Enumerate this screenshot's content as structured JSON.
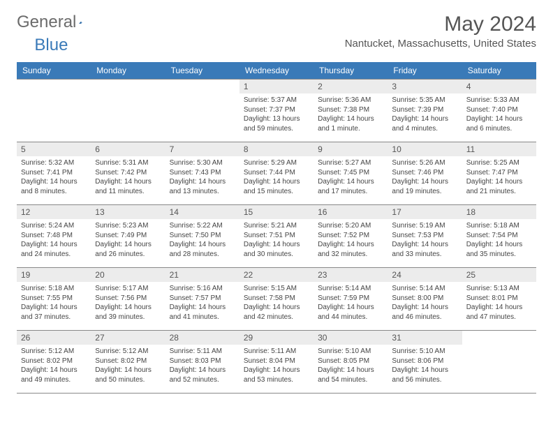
{
  "logo": {
    "text1": "General",
    "text2": "Blue"
  },
  "title": "May 2024",
  "location": "Nantucket, Massachusetts, United States",
  "colors": {
    "header_bg": "#3a7ab8",
    "daynum_bg": "#ececec",
    "border": "#888888",
    "text": "#444444",
    "title": "#555555"
  },
  "dayHeaders": [
    "Sunday",
    "Monday",
    "Tuesday",
    "Wednesday",
    "Thursday",
    "Friday",
    "Saturday"
  ],
  "weeks": [
    [
      null,
      null,
      null,
      {
        "n": "1",
        "sr": "5:37 AM",
        "ss": "7:37 PM",
        "dl": "13 hours and 59 minutes."
      },
      {
        "n": "2",
        "sr": "5:36 AM",
        "ss": "7:38 PM",
        "dl": "14 hours and 1 minute."
      },
      {
        "n": "3",
        "sr": "5:35 AM",
        "ss": "7:39 PM",
        "dl": "14 hours and 4 minutes."
      },
      {
        "n": "4",
        "sr": "5:33 AM",
        "ss": "7:40 PM",
        "dl": "14 hours and 6 minutes."
      }
    ],
    [
      {
        "n": "5",
        "sr": "5:32 AM",
        "ss": "7:41 PM",
        "dl": "14 hours and 8 minutes."
      },
      {
        "n": "6",
        "sr": "5:31 AM",
        "ss": "7:42 PM",
        "dl": "14 hours and 11 minutes."
      },
      {
        "n": "7",
        "sr": "5:30 AM",
        "ss": "7:43 PM",
        "dl": "14 hours and 13 minutes."
      },
      {
        "n": "8",
        "sr": "5:29 AM",
        "ss": "7:44 PM",
        "dl": "14 hours and 15 minutes."
      },
      {
        "n": "9",
        "sr": "5:27 AM",
        "ss": "7:45 PM",
        "dl": "14 hours and 17 minutes."
      },
      {
        "n": "10",
        "sr": "5:26 AM",
        "ss": "7:46 PM",
        "dl": "14 hours and 19 minutes."
      },
      {
        "n": "11",
        "sr": "5:25 AM",
        "ss": "7:47 PM",
        "dl": "14 hours and 21 minutes."
      }
    ],
    [
      {
        "n": "12",
        "sr": "5:24 AM",
        "ss": "7:48 PM",
        "dl": "14 hours and 24 minutes."
      },
      {
        "n": "13",
        "sr": "5:23 AM",
        "ss": "7:49 PM",
        "dl": "14 hours and 26 minutes."
      },
      {
        "n": "14",
        "sr": "5:22 AM",
        "ss": "7:50 PM",
        "dl": "14 hours and 28 minutes."
      },
      {
        "n": "15",
        "sr": "5:21 AM",
        "ss": "7:51 PM",
        "dl": "14 hours and 30 minutes."
      },
      {
        "n": "16",
        "sr": "5:20 AM",
        "ss": "7:52 PM",
        "dl": "14 hours and 32 minutes."
      },
      {
        "n": "17",
        "sr": "5:19 AM",
        "ss": "7:53 PM",
        "dl": "14 hours and 33 minutes."
      },
      {
        "n": "18",
        "sr": "5:18 AM",
        "ss": "7:54 PM",
        "dl": "14 hours and 35 minutes."
      }
    ],
    [
      {
        "n": "19",
        "sr": "5:18 AM",
        "ss": "7:55 PM",
        "dl": "14 hours and 37 minutes."
      },
      {
        "n": "20",
        "sr": "5:17 AM",
        "ss": "7:56 PM",
        "dl": "14 hours and 39 minutes."
      },
      {
        "n": "21",
        "sr": "5:16 AM",
        "ss": "7:57 PM",
        "dl": "14 hours and 41 minutes."
      },
      {
        "n": "22",
        "sr": "5:15 AM",
        "ss": "7:58 PM",
        "dl": "14 hours and 42 minutes."
      },
      {
        "n": "23",
        "sr": "5:14 AM",
        "ss": "7:59 PM",
        "dl": "14 hours and 44 minutes."
      },
      {
        "n": "24",
        "sr": "5:14 AM",
        "ss": "8:00 PM",
        "dl": "14 hours and 46 minutes."
      },
      {
        "n": "25",
        "sr": "5:13 AM",
        "ss": "8:01 PM",
        "dl": "14 hours and 47 minutes."
      }
    ],
    [
      {
        "n": "26",
        "sr": "5:12 AM",
        "ss": "8:02 PM",
        "dl": "14 hours and 49 minutes."
      },
      {
        "n": "27",
        "sr": "5:12 AM",
        "ss": "8:02 PM",
        "dl": "14 hours and 50 minutes."
      },
      {
        "n": "28",
        "sr": "5:11 AM",
        "ss": "8:03 PM",
        "dl": "14 hours and 52 minutes."
      },
      {
        "n": "29",
        "sr": "5:11 AM",
        "ss": "8:04 PM",
        "dl": "14 hours and 53 minutes."
      },
      {
        "n": "30",
        "sr": "5:10 AM",
        "ss": "8:05 PM",
        "dl": "14 hours and 54 minutes."
      },
      {
        "n": "31",
        "sr": "5:10 AM",
        "ss": "8:06 PM",
        "dl": "14 hours and 56 minutes."
      },
      null
    ]
  ],
  "labels": {
    "sunrise": "Sunrise: ",
    "sunset": "Sunset: ",
    "daylight": "Daylight: "
  }
}
